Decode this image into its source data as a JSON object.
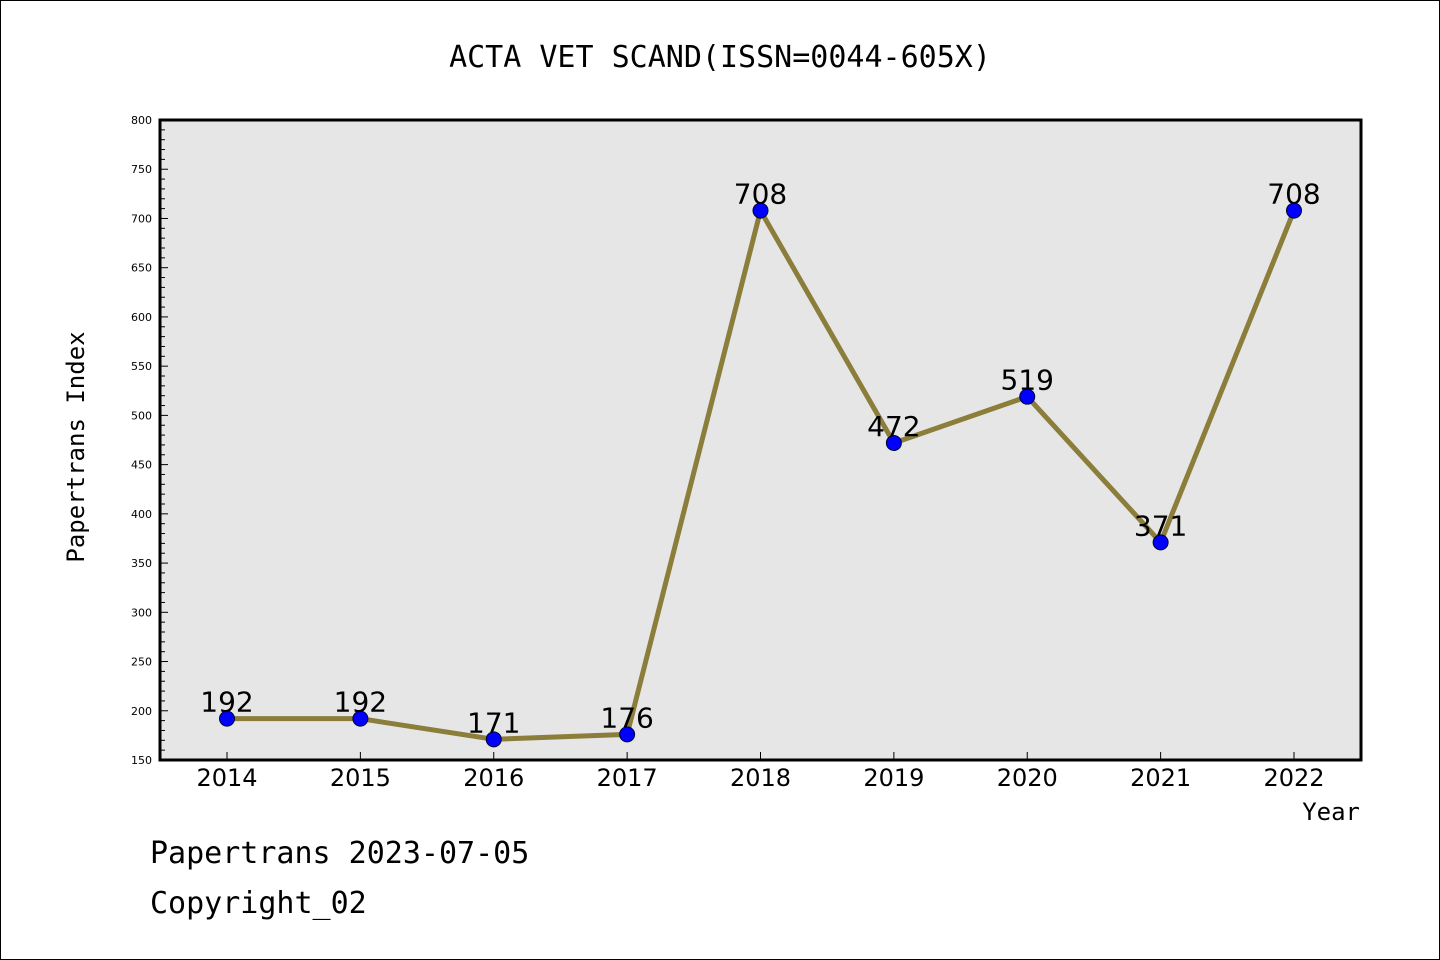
{
  "chart_data": {
    "type": "line",
    "title": "ACTA VET SCAND(ISSN=0044-605X)",
    "xlabel": "Year",
    "ylabel": "Papertrans Index",
    "categories": [
      "2014",
      "2015",
      "2016",
      "2017",
      "2018",
      "2019",
      "2020",
      "2021",
      "2022"
    ],
    "values": [
      192,
      192,
      171,
      176,
      708,
      472,
      519,
      371,
      708
    ],
    "data_labels": [
      "192",
      "192",
      "171",
      "176",
      "708",
      "472",
      "519",
      "371",
      "708"
    ],
    "ylim": [
      150,
      800
    ],
    "yticks": [
      "150",
      "200",
      "250",
      "300",
      "350",
      "400",
      "450",
      "500",
      "550",
      "600",
      "650",
      "700",
      "750",
      "800"
    ],
    "grid": false,
    "colors": {
      "line": "#8b7d3a",
      "marker": "#0000ff",
      "plot_background": "#e6e6e6"
    }
  },
  "footer": {
    "source": "Papertrans 2023-07-05",
    "copyright": "Copyright_02"
  }
}
